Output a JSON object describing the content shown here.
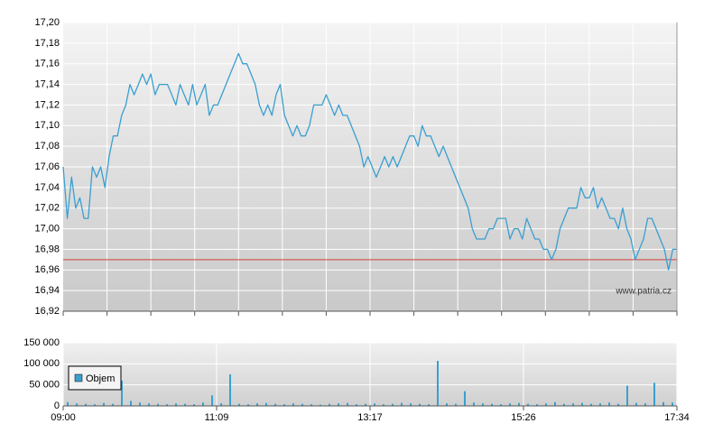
{
  "chart_data": [
    {
      "type": "line",
      "color": "#3a9fd0",
      "watermark": "www.patria.cz",
      "reference_line": {
        "value": 16.97,
        "color": "#d23c3c"
      },
      "ylim": [
        16.92,
        17.2
      ],
      "yticks": [
        {
          "value": 16.92,
          "label": "16,92"
        },
        {
          "value": 16.94,
          "label": "16,94"
        },
        {
          "value": 16.96,
          "label": "16,96"
        },
        {
          "value": 16.98,
          "label": "16,98"
        },
        {
          "value": 17.0,
          "label": "17,00"
        },
        {
          "value": 17.02,
          "label": "17,02"
        },
        {
          "value": 17.04,
          "label": "17,04"
        },
        {
          "value": 17.06,
          "label": "17,06"
        },
        {
          "value": 17.08,
          "label": "17,08"
        },
        {
          "value": 17.1,
          "label": "17,10"
        },
        {
          "value": 17.12,
          "label": "17,12"
        },
        {
          "value": 17.14,
          "label": "17,14"
        },
        {
          "value": 17.16,
          "label": "17,16"
        },
        {
          "value": 17.18,
          "label": "17,18"
        },
        {
          "value": 17.2,
          "label": "17,20"
        }
      ],
      "grid": true,
      "values": [
        17.06,
        17.01,
        17.05,
        17.02,
        17.03,
        17.01,
        17.01,
        17.06,
        17.05,
        17.06,
        17.04,
        17.07,
        17.09,
        17.09,
        17.11,
        17.12,
        17.14,
        17.13,
        17.14,
        17.15,
        17.14,
        17.15,
        17.13,
        17.14,
        17.14,
        17.14,
        17.13,
        17.12,
        17.14,
        17.13,
        17.12,
        17.14,
        17.12,
        17.13,
        17.14,
        17.11,
        17.12,
        17.12,
        17.13,
        17.14,
        17.15,
        17.16,
        17.17,
        17.16,
        17.16,
        17.15,
        17.14,
        17.12,
        17.11,
        17.12,
        17.11,
        17.13,
        17.14,
        17.11,
        17.1,
        17.09,
        17.1,
        17.09,
        17.09,
        17.1,
        17.12,
        17.12,
        17.12,
        17.13,
        17.12,
        17.11,
        17.12,
        17.11,
        17.11,
        17.1,
        17.09,
        17.08,
        17.06,
        17.07,
        17.06,
        17.05,
        17.06,
        17.07,
        17.06,
        17.07,
        17.06,
        17.07,
        17.08,
        17.09,
        17.09,
        17.08,
        17.1,
        17.09,
        17.09,
        17.08,
        17.07,
        17.08,
        17.07,
        17.06,
        17.05,
        17.04,
        17.03,
        17.02,
        17.0,
        16.99,
        16.99,
        16.99,
        17.0,
        17.0,
        17.01,
        17.01,
        17.01,
        16.99,
        17.0,
        17.0,
        16.99,
        17.01,
        17.0,
        16.99,
        16.99,
        16.98,
        16.98,
        16.97,
        16.98,
        17.0,
        17.01,
        17.02,
        17.02,
        17.02,
        17.04,
        17.03,
        17.03,
        17.04,
        17.02,
        17.03,
        17.02,
        17.01,
        17.01,
        17.0,
        17.02,
        17.0,
        16.99,
        16.97,
        16.98,
        16.99,
        17.01,
        17.01,
        17.0,
        16.99,
        16.98,
        16.96,
        16.98,
        16.98
      ]
    },
    {
      "type": "bar",
      "ylim": [
        0,
        150000
      ],
      "yticks": [
        0,
        {
          "value": 50000,
          "label": "50 000"
        },
        {
          "value": 100000,
          "label": "100 000"
        },
        {
          "value": 150000,
          "label": "150 000"
        }
      ],
      "xtick_labels": [
        "09:00",
        "11:09",
        "13:17",
        "15:26",
        "17:34"
      ],
      "legend": "upper left",
      "series": [
        {
          "name": "Objem",
          "color": "#3a9fd0",
          "values": [
            9000,
            6000,
            5000,
            4000,
            7000,
            5000,
            60000,
            12000,
            8000,
            6000,
            5000,
            4000,
            6000,
            5000,
            4000,
            8000,
            25000,
            6000,
            75000,
            5000,
            4000,
            6000,
            7000,
            5000,
            4000,
            6000,
            5000,
            4000,
            3000,
            5000,
            6000,
            7000,
            4000,
            5000,
            6000,
            4000,
            5000,
            7000,
            6000,
            5000,
            4000,
            107000,
            6000,
            5000,
            35000,
            8000,
            6000,
            5000,
            4000,
            6000,
            7000,
            5000,
            4000,
            6000,
            9000,
            5000,
            6000,
            7000,
            5000,
            6000,
            8000,
            5000,
            48000,
            7000,
            6000,
            55000,
            9000,
            8000
          ]
        }
      ]
    }
  ]
}
